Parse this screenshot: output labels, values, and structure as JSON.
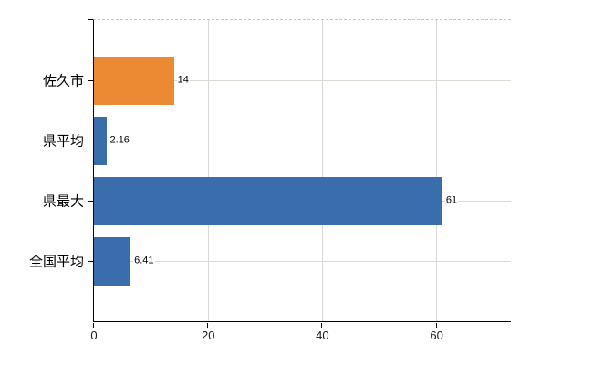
{
  "chart_data": {
    "type": "bar",
    "orientation": "horizontal",
    "title": "",
    "xlabel": "",
    "ylabel": "",
    "categories": [
      "佐久市",
      "県平均",
      "県最大",
      "全国平均"
    ],
    "values": [
      14,
      2.16,
      61,
      6.41
    ],
    "value_labels": [
      "14",
      "2.16",
      "61",
      "6.41"
    ],
    "bar_colors": [
      "#ec8a33",
      "#3a6dab",
      "#3a6dab",
      "#3a6dab"
    ],
    "x_ticks": [
      0,
      20,
      40,
      60
    ],
    "x_tick_labels": [
      "0",
      "20",
      "40",
      "60"
    ],
    "xlim": [
      0,
      73
    ],
    "grid": true,
    "legend": false
  },
  "colors": {
    "bar_blue": "#3a6dab",
    "bar_orange": "#ec8a33",
    "axis_line": "#000000",
    "vertical_grid": "#d9d9d9",
    "horizontal_grid": "#d8ddd3",
    "top_border_dashed": "#c6c6cb",
    "background": "#ffffff",
    "text": "#000000"
  }
}
